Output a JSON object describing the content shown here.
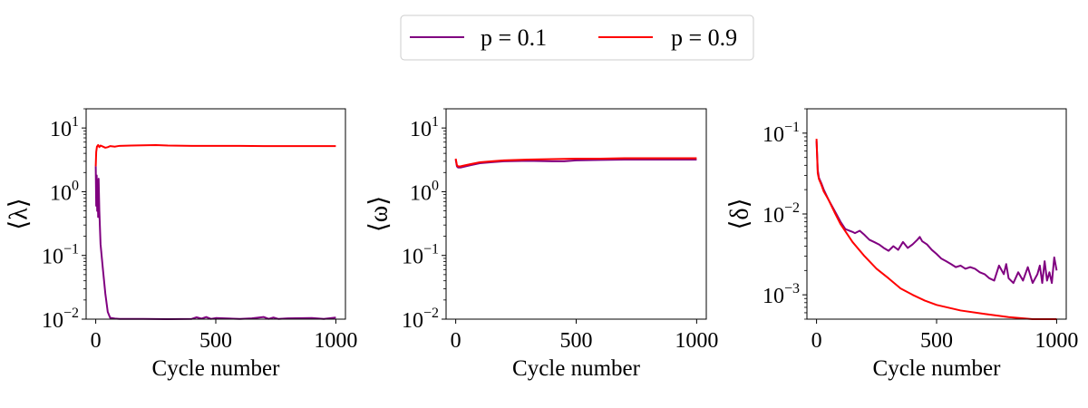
{
  "legend": {
    "items": [
      {
        "label": "p = 0.1",
        "color": "#800080"
      },
      {
        "label": "p = 0.9",
        "color": "#ff0000"
      }
    ]
  },
  "chart_data": [
    {
      "type": "line",
      "xlabel": "Cycle number",
      "ylabel": "⟨λ⟩",
      "yscale": "log",
      "xlim": [
        -40,
        1040
      ],
      "ylim": [
        0.01,
        20
      ],
      "xticks": [
        {
          "v": 0,
          "label": "0"
        },
        {
          "v": 500,
          "label": "500"
        },
        {
          "v": 1000,
          "label": "1000"
        }
      ],
      "yticks": [
        {
          "v": 0.01,
          "base": "10",
          "exp": "−2"
        },
        {
          "v": 0.1,
          "base": "10",
          "exp": "−1"
        },
        {
          "v": 1,
          "base": "10",
          "exp": "0"
        },
        {
          "v": 10,
          "base": "10",
          "exp": "1"
        }
      ],
      "series": [
        {
          "name": "p = 0.1",
          "color": "#800080",
          "x": [
            0,
            2,
            4,
            6,
            8,
            10,
            12,
            15,
            20,
            30,
            40,
            50,
            60,
            80,
            100,
            200,
            300,
            400,
            420,
            440,
            460,
            480,
            500,
            600,
            650,
            700,
            720,
            740,
            760,
            800,
            900,
            950,
            1000
          ],
          "y": [
            2.5,
            0.6,
            1.8,
            0.5,
            1.5,
            0.4,
            1.6,
            0.5,
            0.15,
            0.06,
            0.025,
            0.013,
            0.0105,
            0.0102,
            0.0101,
            0.0101,
            0.01,
            0.0101,
            0.0107,
            0.0102,
            0.0108,
            0.0101,
            0.0104,
            0.0101,
            0.0103,
            0.0108,
            0.0101,
            0.0106,
            0.0101,
            0.0103,
            0.0104,
            0.0101,
            0.0106
          ]
        },
        {
          "name": "p = 0.9",
          "color": "#ff0000",
          "x": [
            0,
            2,
            5,
            10,
            15,
            20,
            30,
            40,
            50,
            60,
            80,
            100,
            150,
            200,
            250,
            300,
            400,
            500,
            600,
            700,
            800,
            900,
            1000
          ],
          "y": [
            2.5,
            4.2,
            5.1,
            5.4,
            5.0,
            5.3,
            5.1,
            4.9,
            5.0,
            5.2,
            5.1,
            5.25,
            5.3,
            5.35,
            5.4,
            5.3,
            5.25,
            5.25,
            5.25,
            5.2,
            5.2,
            5.2,
            5.2
          ]
        }
      ]
    },
    {
      "type": "line",
      "xlabel": "Cycle number",
      "ylabel": "⟨ω⟩",
      "yscale": "log",
      "xlim": [
        -40,
        1040
      ],
      "ylim": [
        0.01,
        20
      ],
      "xticks": [
        {
          "v": 0,
          "label": "0"
        },
        {
          "v": 500,
          "label": "500"
        },
        {
          "v": 1000,
          "label": "1000"
        }
      ],
      "yticks": [
        {
          "v": 0.01,
          "base": "10",
          "exp": "−2"
        },
        {
          "v": 0.1,
          "base": "10",
          "exp": "−1"
        },
        {
          "v": 1,
          "base": "10",
          "exp": "0"
        },
        {
          "v": 10,
          "base": "10",
          "exp": "1"
        }
      ],
      "series": [
        {
          "name": "p = 0.1",
          "color": "#800080",
          "x": [
            0,
            5,
            10,
            20,
            40,
            60,
            100,
            150,
            200,
            300,
            400,
            450,
            500,
            600,
            700,
            800,
            900,
            1000
          ],
          "y": [
            3.2,
            2.5,
            2.4,
            2.4,
            2.5,
            2.6,
            2.8,
            2.9,
            3.0,
            3.05,
            3.0,
            3.0,
            3.1,
            3.15,
            3.2,
            3.2,
            3.2,
            3.2
          ]
        },
        {
          "name": "p = 0.9",
          "color": "#ff0000",
          "x": [
            0,
            5,
            10,
            20,
            40,
            60,
            100,
            150,
            200,
            300,
            400,
            500,
            600,
            700,
            800,
            900,
            1000
          ],
          "y": [
            3.3,
            2.6,
            2.5,
            2.5,
            2.6,
            2.7,
            2.9,
            3.0,
            3.1,
            3.2,
            3.25,
            3.3,
            3.3,
            3.35,
            3.35,
            3.35,
            3.35
          ]
        }
      ]
    },
    {
      "type": "line",
      "xlabel": "Cycle number",
      "ylabel": "⟨δ⟩",
      "yscale": "log",
      "xlim": [
        -40,
        1040
      ],
      "ylim": [
        0.0005,
        0.2
      ],
      "xticks": [
        {
          "v": 0,
          "label": "0"
        },
        {
          "v": 500,
          "label": "500"
        },
        {
          "v": 1000,
          "label": "1000"
        }
      ],
      "yticks": [
        {
          "v": 0.001,
          "base": "10",
          "exp": "−3"
        },
        {
          "v": 0.01,
          "base": "10",
          "exp": "−2"
        },
        {
          "v": 0.1,
          "base": "10",
          "exp": "−1"
        }
      ],
      "series": [
        {
          "name": "p = 0.1",
          "color": "#800080",
          "x": [
            0,
            5,
            10,
            20,
            30,
            50,
            75,
            100,
            120,
            150,
            160,
            180,
            200,
            220,
            240,
            260,
            280,
            300,
            320,
            340,
            360,
            380,
            400,
            420,
            430,
            440,
            460,
            480,
            500,
            520,
            540,
            560,
            580,
            600,
            620,
            640,
            660,
            680,
            700,
            720,
            740,
            760,
            780,
            790,
            800,
            820,
            840,
            860,
            880,
            900,
            920,
            930,
            940,
            950,
            960,
            970,
            980,
            990,
            1000
          ],
          "y": [
            0.08,
            0.035,
            0.028,
            0.024,
            0.02,
            0.015,
            0.011,
            0.008,
            0.0065,
            0.006,
            0.0058,
            0.0062,
            0.0055,
            0.0048,
            0.0045,
            0.0042,
            0.0038,
            0.0035,
            0.004,
            0.0036,
            0.0045,
            0.0038,
            0.0042,
            0.0048,
            0.0052,
            0.0046,
            0.0042,
            0.0036,
            0.0032,
            0.0028,
            0.0026,
            0.0024,
            0.0022,
            0.0023,
            0.0021,
            0.0022,
            0.0021,
            0.0019,
            0.0018,
            0.0016,
            0.0015,
            0.0023,
            0.0018,
            0.0024,
            0.0016,
            0.0014,
            0.0019,
            0.0015,
            0.0022,
            0.0014,
            0.0018,
            0.0023,
            0.0014,
            0.0026,
            0.0015,
            0.0019,
            0.0014,
            0.0029,
            0.002
          ]
        },
        {
          "name": "p = 0.9",
          "color": "#ff0000",
          "x": [
            0,
            5,
            10,
            20,
            30,
            50,
            75,
            100,
            150,
            200,
            250,
            300,
            350,
            400,
            450,
            500,
            600,
            700,
            800,
            900,
            1000
          ],
          "y": [
            0.085,
            0.032,
            0.027,
            0.023,
            0.019,
            0.015,
            0.0105,
            0.0075,
            0.0045,
            0.003,
            0.0021,
            0.0016,
            0.0012,
            0.001,
            0.00085,
            0.00075,
            0.00064,
            0.00058,
            0.00053,
            0.0005,
            0.00048
          ]
        }
      ]
    }
  ]
}
